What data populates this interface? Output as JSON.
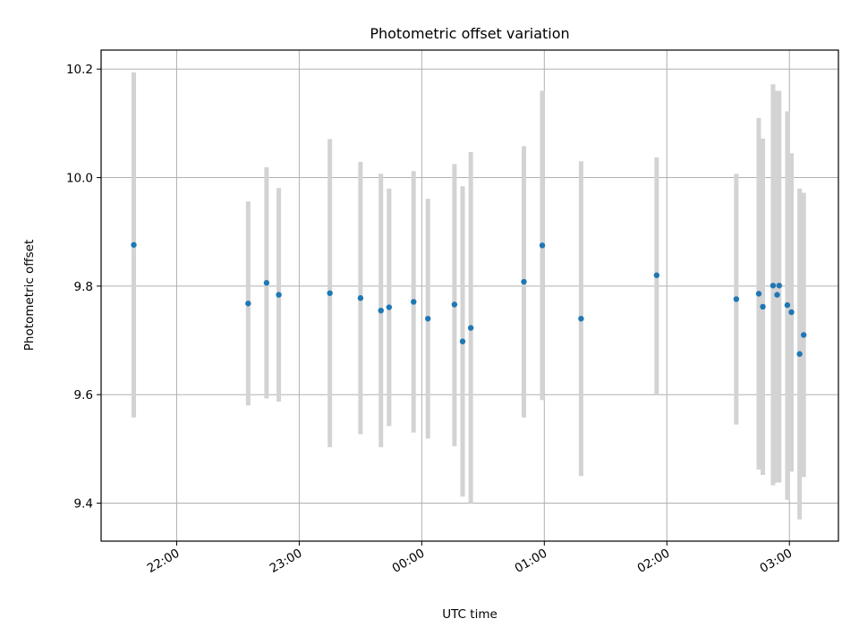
{
  "chart_data": {
    "type": "scatter",
    "title": "Photometric offset variation",
    "xlabel": "UTC time",
    "ylabel": "Photometric offset",
    "x_axis": {
      "kind": "time",
      "min": "21:23",
      "max": "03:24",
      "ticks": [
        "22:00",
        "23:00",
        "00:00",
        "01:00",
        "02:00",
        "03:00"
      ]
    },
    "y_axis": {
      "min": 9.33,
      "max": 10.235,
      "ticks": [
        9.4,
        9.6,
        9.8,
        10.0,
        10.2
      ],
      "tick_labels": [
        "9.4",
        "9.6",
        "9.8",
        "10.0",
        "10.2"
      ]
    },
    "grid": true,
    "colors": {
      "point": "#1f77b4",
      "errorbar": "#d3d3d3"
    },
    "points": [
      {
        "t": "21:39",
        "y": 9.876,
        "lo": 9.558,
        "hi": 10.194
      },
      {
        "t": "22:35",
        "y": 9.768,
        "lo": 9.58,
        "hi": 9.956
      },
      {
        "t": "22:44",
        "y": 9.806,
        "lo": 9.593,
        "hi": 10.019
      },
      {
        "t": "22:50",
        "y": 9.784,
        "lo": 9.587,
        "hi": 9.981
      },
      {
        "t": "23:15",
        "y": 9.787,
        "lo": 9.503,
        "hi": 10.071
      },
      {
        "t": "23:30",
        "y": 9.778,
        "lo": 9.527,
        "hi": 10.029
      },
      {
        "t": "23:40",
        "y": 9.755,
        "lo": 9.503,
        "hi": 10.007
      },
      {
        "t": "23:44",
        "y": 9.761,
        "lo": 9.542,
        "hi": 9.98
      },
      {
        "t": "23:56",
        "y": 9.771,
        "lo": 9.53,
        "hi": 10.012
      },
      {
        "t": "00:03",
        "y": 9.74,
        "lo": 9.519,
        "hi": 9.961
      },
      {
        "t": "00:16",
        "y": 9.766,
        "lo": 9.505,
        "hi": 10.025
      },
      {
        "t": "00:20",
        "y": 9.698,
        "lo": 9.412,
        "hi": 9.984
      },
      {
        "t": "00:24",
        "y": 9.723,
        "lo": 9.4,
        "hi": 10.047
      },
      {
        "t": "00:50",
        "y": 9.808,
        "lo": 9.558,
        "hi": 10.058
      },
      {
        "t": "00:59",
        "y": 9.875,
        "lo": 9.59,
        "hi": 10.16
      },
      {
        "t": "01:18",
        "y": 9.74,
        "lo": 9.45,
        "hi": 10.03
      },
      {
        "t": "01:55",
        "y": 9.82,
        "lo": 9.6,
        "hi": 10.037
      },
      {
        "t": "02:34",
        "y": 9.776,
        "lo": 9.545,
        "hi": 10.007
      },
      {
        "t": "02:45",
        "y": 9.786,
        "lo": 9.462,
        "hi": 10.11
      },
      {
        "t": "02:47",
        "y": 9.762,
        "lo": 9.452,
        "hi": 10.072
      },
      {
        "t": "02:52",
        "y": 9.801,
        "lo": 9.433,
        "hi": 10.172
      },
      {
        "t": "02:54",
        "y": 9.784,
        "lo": 9.438,
        "hi": 10.16
      },
      {
        "t": "02:55",
        "y": 9.801,
        "lo": 9.438,
        "hi": 10.16
      },
      {
        "t": "02:59",
        "y": 9.765,
        "lo": 9.406,
        "hi": 10.122
      },
      {
        "t": "03:01",
        "y": 9.752,
        "lo": 9.458,
        "hi": 10.045
      },
      {
        "t": "03:05",
        "y": 9.675,
        "lo": 9.37,
        "hi": 9.98
      },
      {
        "t": "03:07",
        "y": 9.71,
        "lo": 9.448,
        "hi": 9.972
      }
    ]
  }
}
